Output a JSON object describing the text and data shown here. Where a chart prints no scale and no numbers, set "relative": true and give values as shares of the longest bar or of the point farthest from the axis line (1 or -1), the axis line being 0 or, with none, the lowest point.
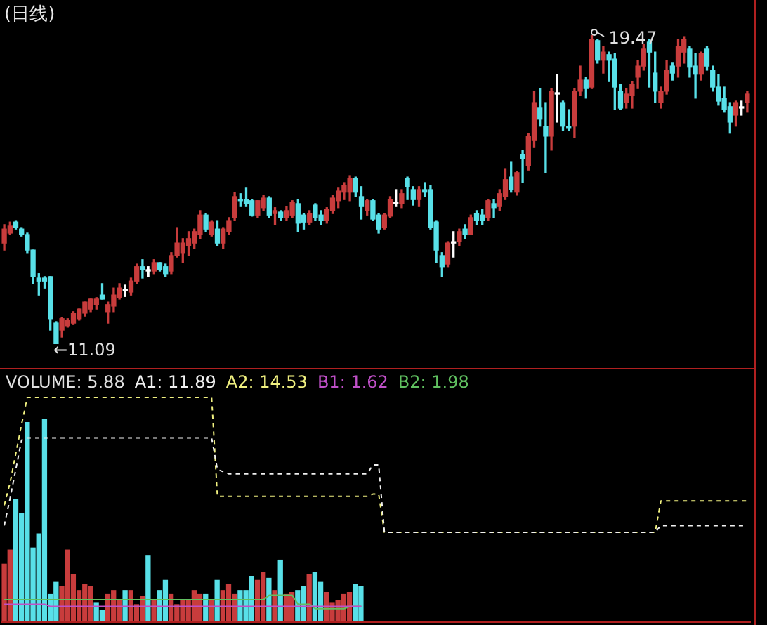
{
  "chart_data": [
    {
      "type": "candlestick",
      "title": "(日线)",
      "categories": [
        null,
        null,
        null,
        null,
        null,
        null,
        null,
        null,
        null,
        null,
        null,
        null,
        null,
        null,
        null,
        null,
        null,
        null,
        null,
        null,
        null,
        null,
        null,
        null,
        null,
        null,
        null,
        null,
        null,
        null,
        null,
        null,
        null,
        null,
        null,
        null,
        null,
        null,
        null,
        null,
        null,
        null,
        null,
        null,
        null,
        null,
        null,
        null,
        null,
        null,
        null,
        null,
        null,
        null,
        null,
        null,
        null,
        null,
        null,
        null,
        null,
        null,
        null,
        null,
        null,
        null,
        null,
        null,
        null,
        null,
        null,
        null,
        null,
        null,
        null,
        null,
        null,
        null,
        null,
        null,
        null,
        null,
        null,
        null,
        null,
        null,
        null,
        null,
        null,
        null,
        null,
        null,
        null,
        null,
        null,
        null,
        null,
        null,
        null,
        null,
        null,
        null,
        null,
        null,
        null,
        null,
        null,
        null,
        null,
        null,
        null,
        null,
        null,
        null,
        null,
        null,
        null,
        null,
        null,
        null,
        null,
        null,
        null,
        null,
        null,
        null,
        null,
        null,
        null,
        null
      ],
      "ohlc": [
        [
          13.83,
          14.33,
          13.64,
          14.21
        ],
        [
          14.1,
          14.4,
          14.06,
          14.29
        ],
        [
          14.4,
          14.44,
          14.21,
          14.25
        ],
        [
          14.21,
          14.25,
          14.02,
          14.06
        ],
        [
          14.06,
          14.1,
          13.57,
          13.64
        ],
        [
          13.64,
          13.64,
          12.73,
          12.92
        ],
        [
          12.88,
          13.0,
          12.42,
          12.8
        ],
        [
          12.88,
          12.92,
          12.61,
          12.8
        ],
        [
          12.92,
          12.92,
          11.47,
          11.78
        ],
        [
          11.66,
          11.7,
          11.09,
          11.09
        ],
        [
          11.47,
          11.81,
          11.28,
          11.78
        ],
        [
          11.59,
          11.78,
          11.55,
          11.74
        ],
        [
          11.66,
          11.97,
          11.62,
          11.93
        ],
        [
          11.78,
          12.04,
          11.74,
          12.04
        ],
        [
          11.93,
          12.23,
          11.85,
          12.23
        ],
        [
          12.04,
          12.31,
          11.97,
          12.31
        ],
        [
          12.16,
          12.35,
          12.04,
          12.31
        ],
        [
          12.42,
          12.73,
          12.31,
          12.31
        ],
        [
          11.97,
          12.23,
          11.66,
          12.16
        ],
        [
          12.12,
          12.61,
          11.97,
          12.42
        ],
        [
          12.35,
          12.73,
          12.31,
          12.61
        ],
        [
          12.54,
          12.69,
          12.38,
          12.57
        ],
        [
          12.5,
          12.88,
          12.42,
          12.8
        ],
        [
          12.8,
          13.26,
          12.73,
          13.19
        ],
        [
          13.19,
          13.38,
          12.88,
          13.11
        ],
        [
          13.07,
          13.19,
          12.92,
          13.09
        ],
        [
          13.07,
          13.38,
          13.0,
          13.3
        ],
        [
          13.3,
          13.3,
          13.07,
          13.11
        ],
        [
          13.19,
          13.26,
          12.92,
          13.0
        ],
        [
          13.07,
          13.57,
          13.0,
          13.49
        ],
        [
          13.49,
          14.25,
          13.45,
          13.83
        ],
        [
          13.57,
          13.95,
          13.3,
          13.83
        ],
        [
          13.76,
          14.14,
          13.49,
          13.95
        ],
        [
          13.83,
          14.21,
          13.68,
          14.14
        ],
        [
          14.06,
          14.71,
          13.95,
          14.59
        ],
        [
          14.59,
          14.63,
          14.14,
          14.21
        ],
        [
          14.06,
          14.44,
          14.02,
          14.4
        ],
        [
          14.21,
          14.44,
          13.76,
          13.83
        ],
        [
          13.83,
          14.25,
          13.68,
          14.21
        ],
        [
          14.14,
          14.52,
          14.06,
          14.44
        ],
        [
          14.52,
          15.21,
          14.44,
          15.09
        ],
        [
          15.01,
          15.17,
          14.82,
          14.98
        ],
        [
          15.01,
          15.32,
          14.82,
          14.9
        ],
        [
          14.98,
          15.01,
          14.56,
          14.59
        ],
        [
          14.59,
          14.98,
          14.52,
          14.98
        ],
        [
          14.79,
          15.13,
          14.71,
          15.05
        ],
        [
          15.05,
          15.09,
          14.52,
          14.59
        ],
        [
          14.63,
          14.79,
          14.33,
          14.71
        ],
        [
          14.67,
          14.71,
          14.44,
          14.52
        ],
        [
          14.52,
          14.82,
          14.44,
          14.71
        ],
        [
          14.59,
          14.98,
          14.52,
          14.94
        ],
        [
          14.9,
          15.01,
          14.14,
          14.37
        ],
        [
          14.59,
          14.63,
          14.21,
          14.4
        ],
        [
          14.4,
          14.71,
          14.33,
          14.63
        ],
        [
          14.86,
          14.9,
          14.44,
          14.52
        ],
        [
          14.59,
          14.71,
          14.33,
          14.44
        ],
        [
          14.44,
          14.79,
          14.37,
          14.75
        ],
        [
          14.71,
          15.13,
          14.63,
          15.05
        ],
        [
          14.98,
          15.32,
          14.79,
          15.24
        ],
        [
          15.21,
          15.47,
          15.01,
          15.4
        ],
        [
          15.21,
          15.66,
          14.98,
          15.59
        ],
        [
          15.59,
          15.62,
          15.09,
          15.21
        ],
        [
          15.09,
          15.36,
          14.48,
          14.82
        ],
        [
          14.71,
          15.01,
          14.59,
          14.98
        ],
        [
          14.98,
          15.01,
          14.44,
          14.48
        ],
        [
          14.59,
          14.63,
          14.1,
          14.21
        ],
        [
          14.25,
          14.63,
          14.21,
          14.59
        ],
        [
          14.56,
          15.09,
          14.52,
          15.01
        ],
        [
          14.9,
          15.28,
          14.82,
          14.92
        ],
        [
          14.9,
          15.28,
          14.79,
          15.17
        ],
        [
          15.59,
          15.62,
          15.01,
          15.36
        ],
        [
          15.28,
          15.36,
          14.86,
          15.01
        ],
        [
          15.01,
          15.36,
          14.82,
          15.28
        ],
        [
          15.28,
          15.47,
          15.09,
          15.21
        ],
        [
          15.28,
          15.4,
          14.21,
          14.25
        ],
        [
          14.4,
          14.44,
          13.3,
          13.64
        ],
        [
          13.49,
          13.57,
          12.92,
          13.19
        ],
        [
          13.26,
          13.87,
          13.19,
          13.83
        ],
        [
          13.83,
          14.14,
          13.45,
          13.85
        ],
        [
          13.87,
          14.21,
          13.76,
          14.14
        ],
        [
          14.21,
          14.33,
          13.95,
          14.06
        ],
        [
          14.06,
          14.59,
          14.06,
          14.52
        ],
        [
          14.63,
          14.71,
          14.33,
          14.44
        ],
        [
          14.59,
          14.75,
          14.33,
          14.44
        ],
        [
          14.52,
          15.01,
          14.44,
          14.98
        ],
        [
          14.9,
          15.01,
          14.52,
          14.79
        ],
        [
          14.82,
          15.28,
          14.71,
          15.17
        ],
        [
          15.09,
          15.85,
          15.01,
          15.55
        ],
        [
          15.62,
          16.04,
          15.21,
          15.28
        ],
        [
          15.21,
          15.77,
          15.13,
          15.74
        ],
        [
          16.23,
          16.35,
          15.47,
          16.12
        ],
        [
          15.93,
          16.81,
          15.81,
          16.73
        ],
        [
          16.61,
          17.95,
          16.42,
          17.64
        ],
        [
          17.49,
          18.02,
          17.0,
          17.19
        ],
        [
          17.0,
          17.64,
          15.74,
          16.73
        ],
        [
          16.73,
          18.02,
          16.35,
          17.95
        ],
        [
          17.87,
          18.41,
          17.11,
          17.89
        ],
        [
          17.64,
          17.68,
          16.88,
          17.0
        ],
        [
          17.0,
          17.45,
          16.88,
          16.96
        ],
        [
          17.0,
          18.02,
          16.69,
          17.95
        ],
        [
          17.95,
          18.63,
          17.83,
          18.25
        ],
        [
          18.25,
          18.33,
          17.76,
          18.02
        ],
        [
          18.06,
          19.47,
          18.02,
          19.36
        ],
        [
          19.32,
          19.36,
          18.71,
          18.79
        ],
        [
          18.79,
          19.17,
          18.44,
          19.01
        ],
        [
          18.94,
          19.01,
          18.21,
          18.79
        ],
        [
          18.82,
          18.98,
          17.45,
          18.06
        ],
        [
          17.95,
          18.14,
          17.45,
          17.49
        ],
        [
          17.64,
          18.02,
          17.49,
          17.87
        ],
        [
          17.83,
          18.21,
          17.49,
          18.14
        ],
        [
          18.33,
          18.79,
          18.02,
          18.63
        ],
        [
          18.63,
          19.21,
          18.52,
          19.09
        ],
        [
          19.28,
          19.36,
          18.06,
          19.01
        ],
        [
          18.44,
          19.01,
          17.64,
          17.95
        ],
        [
          17.64,
          18.06,
          17.49,
          17.95
        ],
        [
          17.95,
          18.79,
          17.87,
          18.52
        ],
        [
          18.63,
          18.71,
          18.25,
          18.44
        ],
        [
          18.63,
          19.36,
          18.33,
          19.17
        ],
        [
          19.01,
          19.43,
          18.71,
          19.36
        ],
        [
          19.09,
          19.17,
          18.33,
          18.6
        ],
        [
          18.63,
          18.98,
          17.76,
          18.41
        ],
        [
          18.41,
          19.01,
          18.25,
          18.98
        ],
        [
          19.09,
          19.17,
          18.52,
          18.63
        ],
        [
          18.52,
          18.63,
          17.95,
          18.06
        ],
        [
          18.06,
          18.41,
          17.57,
          17.68
        ],
        [
          17.76,
          18.06,
          17.38,
          17.45
        ],
        [
          17.53,
          17.64,
          16.81,
          17.11
        ],
        [
          17.3,
          17.68,
          17.0,
          17.64
        ],
        [
          17.49,
          17.68,
          17.3,
          17.51
        ],
        [
          17.64,
          17.95,
          17.38,
          17.87
        ]
      ],
      "colors": [
        "#c83c3c",
        "#c83c3c",
        "#58e0e8",
        "#58e0e8",
        "#58e0e8",
        "#58e0e8",
        "#58e0e8",
        "#58e0e8",
        "#58e0e8",
        "#58e0e8",
        "#c83c3c",
        "#c83c3c",
        "#c83c3c",
        "#c83c3c",
        "#c83c3c",
        "#c83c3c",
        "#c83c3c",
        "#58e0e8",
        "#c83c3c",
        "#c83c3c",
        "#c83c3c",
        "#ffffff",
        "#c83c3c",
        "#c83c3c",
        "#58e0e8",
        "#ffffff",
        "#c83c3c",
        "#58e0e8",
        "#58e0e8",
        "#c83c3c",
        "#c83c3c",
        "#c83c3c",
        "#c83c3c",
        "#c83c3c",
        "#c83c3c",
        "#58e0e8",
        "#c83c3c",
        "#58e0e8",
        "#c83c3c",
        "#c83c3c",
        "#c83c3c",
        "#58e0e8",
        "#58e0e8",
        "#58e0e8",
        "#c83c3c",
        "#c83c3c",
        "#58e0e8",
        "#c83c3c",
        "#58e0e8",
        "#c83c3c",
        "#c83c3c",
        "#58e0e8",
        "#58e0e8",
        "#c83c3c",
        "#58e0e8",
        "#58e0e8",
        "#c83c3c",
        "#c83c3c",
        "#c83c3c",
        "#c83c3c",
        "#c83c3c",
        "#58e0e8",
        "#58e0e8",
        "#c83c3c",
        "#58e0e8",
        "#58e0e8",
        "#c83c3c",
        "#c83c3c",
        "#ffffff",
        "#c83c3c",
        "#58e0e8",
        "#58e0e8",
        "#c83c3c",
        "#58e0e8",
        "#58e0e8",
        "#58e0e8",
        "#58e0e8",
        "#c83c3c",
        "#ffffff",
        "#c83c3c",
        "#58e0e8",
        "#c83c3c",
        "#58e0e8",
        "#58e0e8",
        "#c83c3c",
        "#58e0e8",
        "#c83c3c",
        "#c83c3c",
        "#58e0e8",
        "#c83c3c",
        "#58e0e8",
        "#c83c3c",
        "#c83c3c",
        "#58e0e8",
        "#58e0e8",
        "#c83c3c",
        "#ffffff",
        "#58e0e8",
        "#58e0e8",
        "#c83c3c",
        "#c83c3c",
        "#58e0e8",
        "#c83c3c",
        "#58e0e8",
        "#c83c3c",
        "#58e0e8",
        "#58e0e8",
        "#58e0e8",
        "#c83c3c",
        "#c83c3c",
        "#c83c3c",
        "#c83c3c",
        "#58e0e8",
        "#58e0e8",
        "#c83c3c",
        "#c83c3c",
        "#58e0e8",
        "#c83c3c",
        "#c83c3c",
        "#58e0e8",
        "#58e0e8",
        "#c83c3c",
        "#58e0e8",
        "#58e0e8",
        "#58e0e8",
        "#58e0e8",
        "#58e0e8",
        "#c83c3c",
        "#ffffff",
        "#c83c3c"
      ],
      "annotations": [
        "19.47",
        "←11.09"
      ]
    },
    {
      "type": "bar",
      "relative": true,
      "categories": [
        null,
        null,
        null,
        null,
        null,
        null,
        null,
        null,
        null,
        null,
        null,
        null,
        null,
        null,
        null,
        null,
        null,
        null,
        null,
        null,
        null,
        null,
        null,
        null,
        null,
        null,
        null,
        null,
        null,
        null,
        null,
        null,
        null,
        null,
        null,
        null,
        null,
        null,
        null,
        null,
        null,
        null,
        null,
        null,
        null,
        null,
        null,
        null,
        null,
        null,
        null,
        null,
        null,
        null,
        null,
        null,
        null,
        null,
        null,
        null,
        null,
        null,
        null
      ],
      "annotations": [
        "VOLUME: 5.88"
      ],
      "series": [
        {
          "type": "bar",
          "colors": [
            "#c83c3c",
            "#c83c3c",
            "#58e0e8",
            "#58e0e8",
            "#58e0e8",
            "#58e0e8",
            "#58e0e8",
            "#58e0e8",
            "#58e0e8",
            "#58e0e8",
            "#c83c3c",
            "#c83c3c",
            "#c83c3c",
            "#c83c3c",
            "#c83c3c",
            "#c83c3c",
            "#58e0e8",
            "#58e0e8",
            "#c83c3c",
            "#c83c3c",
            "#c83c3c",
            "#58e0e8",
            "#c83c3c",
            "#c83c3c",
            "#c83c3c",
            "#58e0e8",
            "#c83c3c",
            "#58e0e8",
            "#58e0e8",
            "#c83c3c",
            "#c83c3c",
            "#c83c3c",
            "#c83c3c",
            "#c83c3c",
            "#c83c3c",
            "#58e0e8",
            "#c83c3c",
            "#58e0e8",
            "#c83c3c",
            "#c83c3c",
            "#c83c3c",
            "#58e0e8",
            "#58e0e8",
            "#58e0e8",
            "#c83c3c",
            "#c83c3c",
            "#58e0e8",
            "#c83c3c",
            "#58e0e8",
            "#c83c3c",
            "#c83c3c",
            "#58e0e8",
            "#58e0e8",
            "#c83c3c",
            "#58e0e8",
            "#58e0e8",
            "#c83c3c",
            "#c83c3c",
            "#c83c3c",
            "#c83c3c",
            "#c83c3c",
            "#58e0e8",
            "#58e0e8"
          ],
          "values": [
            0.28,
            0.35,
            0.6,
            0.53,
            0.98,
            0.36,
            0.43,
            1,
            0.13,
            0.19,
            0.17,
            0.35,
            0.23,
            0.15,
            0.18,
            0.17,
            0.09,
            0.05,
            0.13,
            0.15,
            0.1,
            0.15,
            0.15,
            0.08,
            0.12,
            0.32,
            0.1,
            0.15,
            0.2,
            0.13,
            0.08,
            0.1,
            0.1,
            0.15,
            0.13,
            0.13,
            0.1,
            0.2,
            0.15,
            0.18,
            0.13,
            0.15,
            0.15,
            0.22,
            0.2,
            0.24,
            0.21,
            0.15,
            0.3,
            0.13,
            0.14,
            0.15,
            0.17,
            0.23,
            0.24,
            0.19,
            0.14,
            0.09,
            0.1,
            0.13,
            0.14,
            0.18,
            0.17
          ]
        }
      ]
    },
    {
      "type": "line",
      "relative": true,
      "marker": "none",
      "categories": [
        null,
        null,
        null,
        null,
        null,
        null,
        null,
        null,
        null,
        null,
        null,
        null,
        null,
        null,
        null,
        null,
        null,
        null,
        null,
        null,
        null,
        null,
        null,
        null,
        null,
        null,
        null,
        null,
        null,
        null,
        null,
        null,
        null,
        null,
        null,
        null,
        null,
        null,
        null,
        null,
        null,
        null,
        null,
        null,
        null,
        null,
        null,
        null,
        null,
        null,
        null,
        null,
        null,
        null,
        null,
        null,
        null,
        null,
        null,
        null,
        null,
        null,
        null,
        null,
        null,
        null,
        null,
        null,
        null,
        null,
        null,
        null,
        null,
        null,
        null,
        null,
        null,
        null,
        null,
        null,
        null,
        null,
        null,
        null,
        null,
        null,
        null,
        null,
        null,
        null,
        null,
        null,
        null,
        null,
        null,
        null,
        null,
        null,
        null,
        null,
        null,
        null,
        null,
        null,
        null,
        null,
        null,
        null,
        null,
        null,
        null,
        null,
        null,
        null,
        null,
        null,
        null,
        null,
        null,
        null,
        null,
        null,
        null,
        null,
        null,
        null,
        null,
        null,
        null,
        null
      ],
      "annotations": [
        "A1: 11.89",
        "A2: 14.53",
        "B1: 1.62",
        "B2: 1.98"
      ],
      "series": [
        {
          "type": "line",
          "color": "#f0f0f0",
          "line_style": "dashed",
          "values": [
            0.43,
            0.55,
            0.68,
            0.81,
            0.82,
            0.82,
            0.82,
            0.82,
            0.82,
            0.82,
            0.82,
            0.82,
            0.82,
            0.82,
            0.82,
            0.82,
            0.82,
            0.82,
            0.82,
            0.82,
            0.82,
            0.82,
            0.82,
            0.82,
            0.82,
            0.82,
            0.82,
            0.82,
            0.82,
            0.82,
            0.82,
            0.82,
            0.82,
            0.82,
            0.82,
            0.82,
            0.82,
            0.68,
            0.67,
            0.66,
            0.66,
            0.66,
            0.66,
            0.66,
            0.66,
            0.66,
            0.66,
            0.66,
            0.66,
            0.66,
            0.66,
            0.66,
            0.66,
            0.66,
            0.66,
            0.66,
            0.66,
            0.66,
            0.66,
            0.66,
            0.66,
            0.66,
            0.66,
            0.66,
            0.7,
            0.7,
            0.4,
            0.4,
            0.4,
            0.4,
            0.4,
            0.4,
            0.4,
            0.4,
            0.4,
            0.4,
            0.4,
            0.4,
            0.4,
            0.4,
            0.4,
            0.4,
            0.4,
            0.4,
            0.4,
            0.4,
            0.4,
            0.4,
            0.4,
            0.4,
            0.4,
            0.4,
            0.4,
            0.4,
            0.4,
            0.4,
            0.4,
            0.4,
            0.4,
            0.4,
            0.4,
            0.4,
            0.4,
            0.4,
            0.4,
            0.4,
            0.4,
            0.4,
            0.4,
            0.4,
            0.4,
            0.4,
            0.4,
            0.4,
            0.43,
            0.43,
            0.43,
            0.43,
            0.43,
            0.43,
            0.43,
            0.43,
            0.43,
            0.43,
            0.43,
            0.43,
            0.43,
            0.43,
            0.43,
            0.43
          ]
        },
        {
          "type": "line",
          "color": "#f0f080",
          "line_style": "dashed",
          "values": [
            0.52,
            0.62,
            0.75,
            0.88,
            1,
            1,
            1,
            1,
            1,
            1,
            1,
            1,
            1,
            1,
            1,
            1,
            1,
            1,
            1,
            1,
            1,
            1,
            1,
            1,
            1,
            1,
            1,
            1,
            1,
            1,
            1,
            1,
            1,
            1,
            1,
            1,
            1,
            0.56,
            0.56,
            0.56,
            0.56,
            0.56,
            0.56,
            0.56,
            0.56,
            0.56,
            0.56,
            0.56,
            0.56,
            0.56,
            0.56,
            0.56,
            0.56,
            0.56,
            0.56,
            0.56,
            0.56,
            0.56,
            0.56,
            0.56,
            0.56,
            0.56,
            0.56,
            0.56,
            0.57,
            0.57,
            0.4,
            0.4,
            0.4,
            0.4,
            0.4,
            0.4,
            0.4,
            0.4,
            0.4,
            0.4,
            0.4,
            0.4,
            0.4,
            0.4,
            0.4,
            0.4,
            0.4,
            0.4,
            0.4,
            0.4,
            0.4,
            0.4,
            0.4,
            0.4,
            0.4,
            0.4,
            0.4,
            0.4,
            0.4,
            0.4,
            0.4,
            0.4,
            0.4,
            0.4,
            0.4,
            0.4,
            0.4,
            0.4,
            0.4,
            0.4,
            0.4,
            0.4,
            0.4,
            0.4,
            0.4,
            0.4,
            0.4,
            0.4,
            0.54,
            0.54,
            0.54,
            0.54,
            0.54,
            0.54,
            0.54,
            0.54,
            0.54,
            0.54,
            0.54,
            0.54,
            0.54,
            0.54,
            0.54,
            0.54
          ]
        },
        {
          "type": "line",
          "color": "#c050c8",
          "line_style": "solid",
          "values": [
            0.08,
            0.08,
            0.08,
            0.08,
            0.08,
            0.08,
            0.08,
            0.08,
            0.07,
            0.07,
            0.07,
            0.07,
            0.07,
            0.07,
            0.07,
            0.07,
            0.07,
            0.07,
            0.07,
            0.07,
            0.07,
            0.07,
            0.07,
            0.07,
            0.07,
            0.07,
            0.07,
            0.07,
            0.07,
            0.07,
            0.07,
            0.07,
            0.07,
            0.07,
            0.07,
            0.07,
            0.07,
            0.07,
            0.07,
            0.07,
            0.07,
            0.07,
            0.07,
            0.07,
            0.07,
            0.07,
            0.07,
            0.07,
            0.07,
            0.07,
            0.07,
            0.07,
            0.07,
            0.07,
            0.07,
            0.07,
            0.07,
            0.07,
            0.07,
            0.07,
            0.07,
            0.07,
            0.07,
            null,
            null,
            null,
            null,
            null,
            null,
            null,
            null,
            null,
            null,
            null,
            null,
            null,
            null,
            null,
            null,
            null,
            null,
            null,
            null,
            null,
            null,
            null,
            null,
            null,
            null,
            null,
            null,
            null,
            null,
            null,
            null,
            null,
            null,
            null,
            null,
            null,
            null,
            null,
            null,
            null,
            null,
            null,
            null,
            null,
            null,
            null,
            null,
            null,
            null,
            null,
            null,
            null,
            null,
            null,
            null,
            null,
            null,
            null,
            null,
            null,
            null,
            null,
            null,
            null,
            null,
            null
          ]
        },
        {
          "type": "line",
          "color": "#60c060",
          "line_style": "solid",
          "values": [
            0.1,
            0.1,
            0.1,
            0.1,
            0.1,
            0.1,
            0.1,
            0.1,
            0.1,
            0.1,
            0.1,
            0.1,
            0.1,
            0.1,
            0.1,
            0.1,
            0.1,
            0.1,
            0.1,
            0.1,
            0.1,
            0.1,
            0.1,
            0.1,
            0.1,
            0.1,
            0.1,
            0.1,
            0.1,
            0.1,
            0.1,
            0.1,
            0.1,
            0.1,
            0.1,
            0.1,
            0.1,
            0.1,
            0.1,
            0.1,
            0.1,
            0.1,
            0.1,
            0.1,
            0.1,
            0.1,
            0.12,
            0.12,
            0.12,
            0.12,
            0.12,
            0.08,
            0.08,
            0.08,
            0.06,
            0.06,
            0.06,
            0.06,
            0.06,
            0.06,
            0.07,
            0.07,
            0.07,
            null,
            null,
            null,
            null,
            null,
            null,
            null,
            null,
            null,
            null,
            null,
            null,
            null,
            null,
            null,
            null,
            null,
            null,
            null,
            null,
            null,
            null,
            null,
            null,
            null,
            null,
            null,
            null,
            null,
            null,
            null,
            null,
            null,
            null,
            null,
            null,
            null,
            null,
            null,
            null,
            null,
            null,
            null,
            null,
            null,
            null,
            null,
            null,
            null,
            null,
            null,
            null,
            null,
            null,
            null,
            null,
            null,
            null,
            null,
            null,
            null,
            null,
            null,
            null,
            null,
            null,
            null
          ]
        }
      ]
    }
  ]
}
